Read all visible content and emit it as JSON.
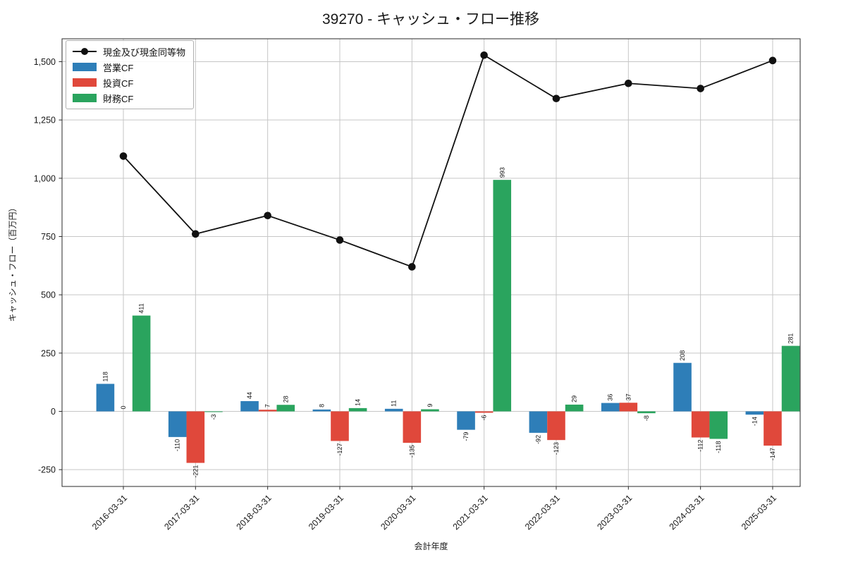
{
  "chart_data": {
    "type": "bar",
    "subtype": "grouped-bar-with-line",
    "title": "39270 - キャッシュ・フロー推移",
    "xlabel": "会計年度",
    "ylabel": "キャッシュ・フロー（百万円）",
    "categories": [
      "2016-03-31",
      "2017-03-31",
      "2018-03-31",
      "2019-03-31",
      "2020-03-31",
      "2021-03-31",
      "2022-03-31",
      "2023-03-31",
      "2024-03-31",
      "2025-03-31"
    ],
    "series": [
      {
        "name": "営業CF",
        "type": "bar",
        "color": "#2e7eb8",
        "values": [
          118,
          -110,
          44,
          8,
          11,
          -79,
          -92,
          36,
          208,
          -14
        ]
      },
      {
        "name": "投資CF",
        "type": "bar",
        "color": "#e0483b",
        "values": [
          0,
          -221,
          7,
          -127,
          -135,
          -6,
          -123,
          37,
          -112,
          -147
        ]
      },
      {
        "name": "財務CF",
        "type": "bar",
        "color": "#2aa45e",
        "values": [
          411,
          -3,
          28,
          14,
          9,
          993,
          29,
          -8,
          -118,
          281
        ]
      },
      {
        "name": "現金及び現金同等物",
        "type": "line",
        "color": "#111111",
        "values": [
          1095,
          761,
          840,
          735,
          620,
          1528,
          1342,
          1407,
          1385,
          1505
        ]
      }
    ],
    "bar_value_labels_shown": true,
    "yticks": [
      -250,
      0,
      250,
      500,
      750,
      1000,
      1250,
      1500
    ],
    "ytick_labels": [
      "-250",
      "0",
      "250",
      "500",
      "750",
      "1,000",
      "1,250",
      "1,500"
    ],
    "ylim": [
      -322,
      1598
    ],
    "grid": true,
    "legend_position": "upper-left",
    "legend_order": [
      "現金及び現金同等物",
      "営業CF",
      "投資CF",
      "財務CF"
    ],
    "colors": {
      "grid": "#c6c6c6",
      "spine": "#2a2a2a",
      "tick_text": "#1a1a1a",
      "bar_label": "#111111"
    }
  }
}
